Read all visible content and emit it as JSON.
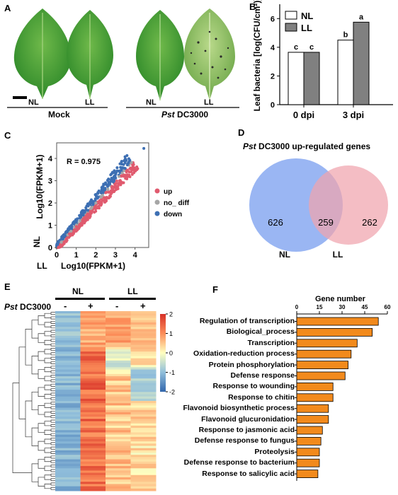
{
  "panels": {
    "A": {
      "letter": "A",
      "leaves": [
        "NL",
        "LL",
        "NL",
        "LL"
      ],
      "group_labels": {
        "mock": "Mock",
        "pst_italic": "Pst",
        "pst_rest": " DC3000"
      }
    },
    "B": {
      "letter": "B",
      "chart_data": {
        "type": "bar",
        "categories": [
          "0 dpi",
          "3 dpi"
        ],
        "series": [
          {
            "name": "NL",
            "values": [
              3.65,
              4.5
            ],
            "letters": [
              "c",
              "b"
            ],
            "color": "#ffffff"
          },
          {
            "name": "LL",
            "values": [
              3.65,
              5.75
            ],
            "letters": [
              "c",
              "a"
            ],
            "color": "#808080"
          }
        ],
        "ylabel": "Leaf bacteria [log(CFU/cm²)]",
        "ylim": [
          0,
          7
        ],
        "yticks": [
          "0",
          "2",
          "4",
          "6"
        ],
        "legend": "top-left"
      }
    },
    "C": {
      "letter": "C",
      "chart_data": {
        "type": "scatter",
        "annotation": "R = 0.975",
        "xlabel_prefix": "LL",
        "xlabel": "Log10(FPKM+1)",
        "ylabel_prefix": "NL",
        "ylabel": "Log10(FPKM+1)",
        "xlim": [
          0,
          4.7
        ],
        "ylim": [
          0,
          4.7
        ],
        "xticks": [
          "0",
          "1",
          "2",
          "3",
          "4"
        ],
        "yticks": [
          "0",
          "1",
          "2",
          "3",
          "4"
        ],
        "legend": [
          {
            "name": "up",
            "color": "#e05a6e"
          },
          {
            "name": "no_ diff",
            "color": "#a6a6a6"
          },
          {
            "name": "down",
            "color": "#3d6fb3"
          }
        ],
        "legend_position": "right"
      }
    },
    "D": {
      "letter": "D",
      "title_italic": "Pst",
      "title_rest": " DC3000 up-regulated genes",
      "venn": {
        "sets": [
          {
            "name": "NL",
            "only": "626",
            "color": "#7da1ef"
          },
          {
            "name": "LL",
            "only": "262",
            "color": "#f0a4ad"
          }
        ],
        "overlap": "259"
      }
    },
    "E": {
      "letter": "E",
      "groups": [
        "NL",
        "LL"
      ],
      "treatment_italic": "Pst",
      "treatment_rest": " DC3000",
      "signs": [
        "-",
        "+",
        "-",
        "+"
      ],
      "colorbar_ticks": [
        "2",
        "1",
        "0",
        "-1",
        "-2"
      ]
    },
    "F": {
      "letter": "F",
      "chart_data": {
        "type": "bar",
        "orientation": "horizontal",
        "title": "Gene number",
        "categories": [
          "Regulation of transcription",
          "Biological_process",
          "Transcription",
          "Oxidation-reduction process",
          "Protein phosphorylation",
          "Defense response",
          "Response to wounding",
          "Response to chitin",
          "Flavonoid biosynthetic process",
          "Flavonoid glucuronidation",
          "Response to jasmonic acid",
          "Defense response to fungus",
          "Proteolysis",
          "Defense response to bacterium",
          "Response to salicylic acid"
        ],
        "values": [
          54,
          50,
          40,
          36,
          34,
          32,
          24,
          24,
          21,
          21,
          17,
          16,
          15,
          15,
          14
        ],
        "xlim": [
          0,
          60
        ],
        "xticks": [
          "0",
          "15",
          "30",
          "45",
          "60"
        ],
        "color": "#f28a1c"
      }
    }
  }
}
